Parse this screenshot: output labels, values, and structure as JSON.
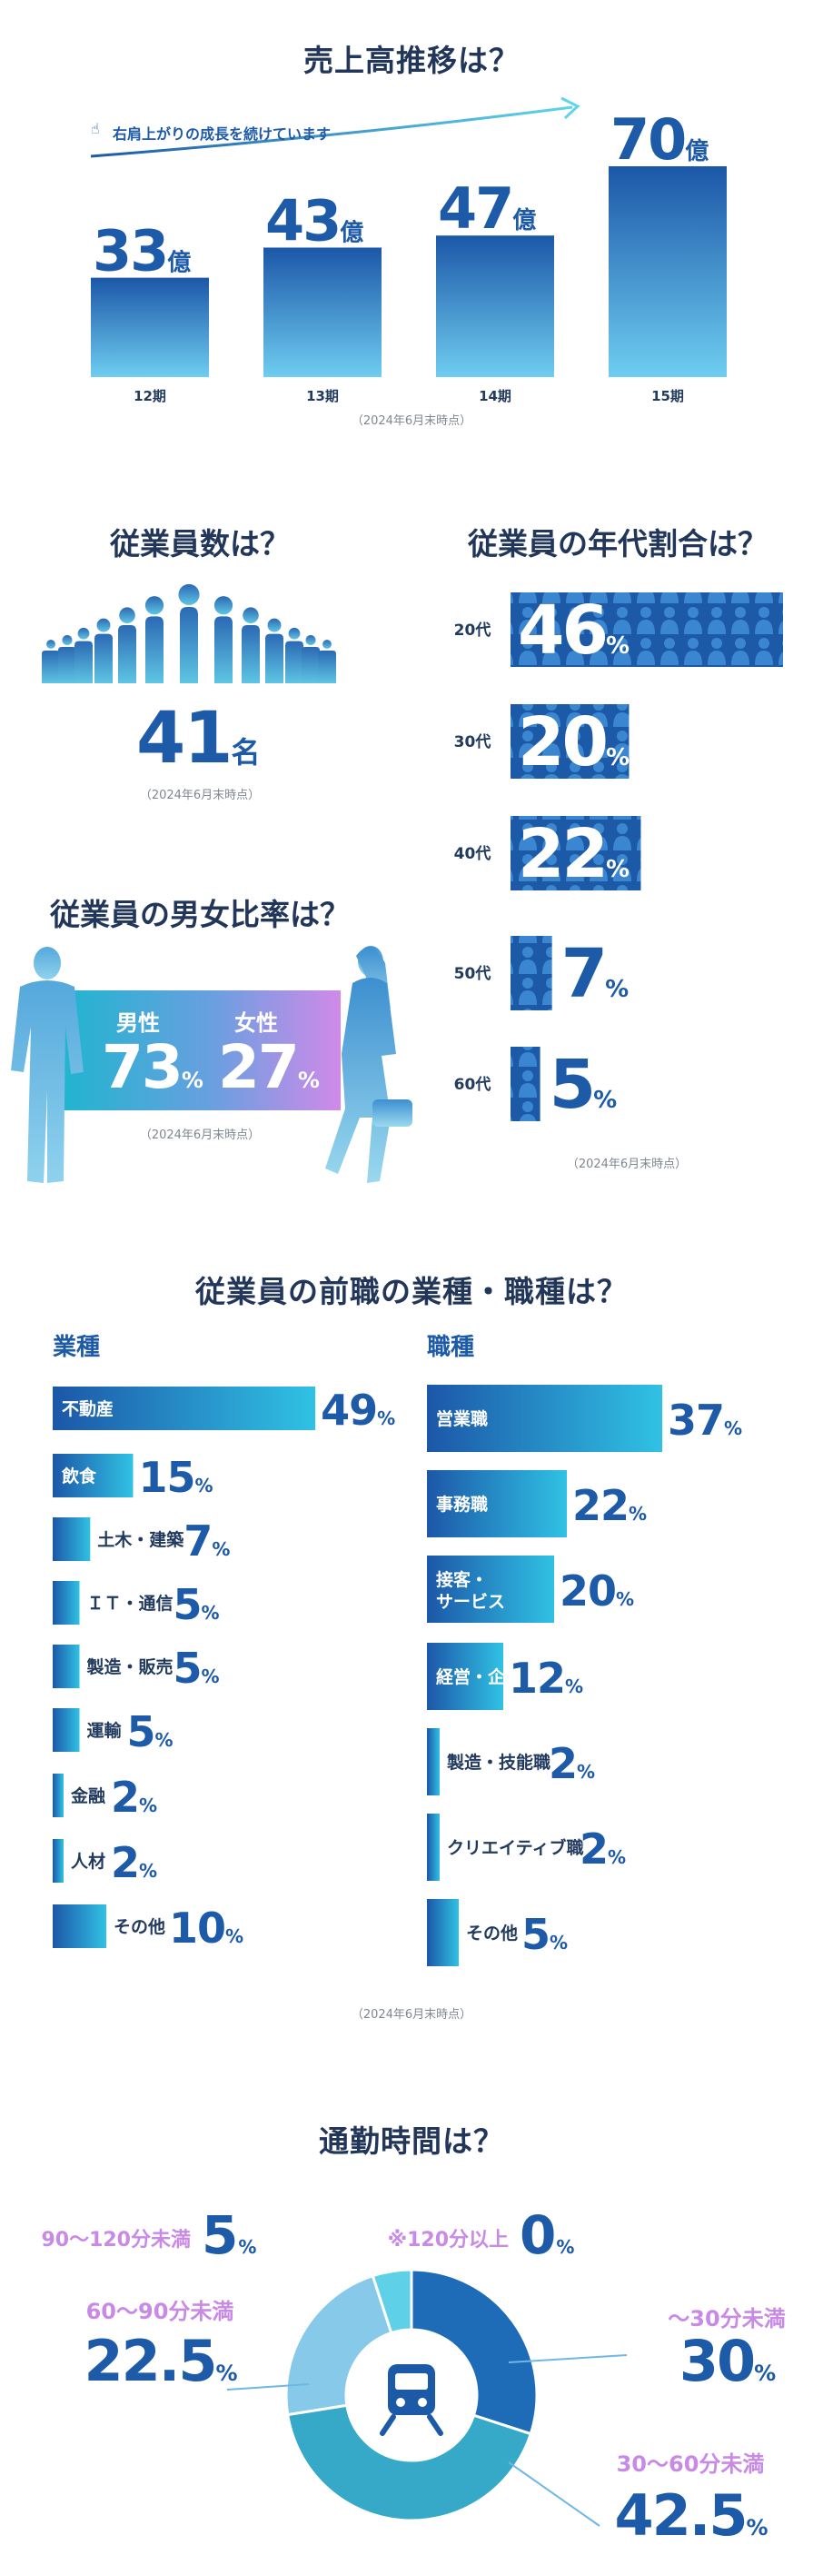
{
  "sales": {
    "title": "売上高推移は？",
    "tagline": "右肩上がりの成長を続けています",
    "note": "（2024年6月末時点）",
    "unit": "億"
  },
  "headcount": {
    "title": "従業員数は？",
    "value": "41",
    "unit": "名",
    "note": "（2024年6月末時点）"
  },
  "gender": {
    "title": "従業員の男女比率は？",
    "male_label": "男性",
    "male_value": "73",
    "female_label": "女性",
    "female_value": "27",
    "pct": "%",
    "note": "（2024年6月末時点）"
  },
  "age": {
    "title": "従業員の年代割合は？",
    "note": "（2024年6月末時点）"
  },
  "prev_job": {
    "title": "従業員の前職の業種・職種は？",
    "industry_heading": "業種",
    "occupation_heading": "職種",
    "note": "（2024年6月末時点）"
  },
  "commute": {
    "title": "通勤時間は？",
    "center_icon": "train-icon"
  },
  "colors": {
    "dark_blue": "#1d5aa8",
    "navy": "#223659",
    "cyan": "#25b6d8",
    "purple": "#c98ae6",
    "gray": "#7f8693"
  },
  "chart_data": [
    {
      "type": "bar",
      "id": "sales",
      "categories": [
        "12期",
        "13期",
        "14期",
        "15期"
      ],
      "values": [
        33,
        43,
        47,
        70
      ],
      "labels": [
        "33",
        "43",
        "47",
        "70"
      ],
      "unit": "億",
      "ylim": [
        0,
        70
      ]
    },
    {
      "type": "bar",
      "id": "gender",
      "categories": [
        "男性",
        "女性"
      ],
      "values": [
        73,
        27
      ],
      "unit": "%"
    },
    {
      "type": "bar",
      "id": "age",
      "categories": [
        "20代",
        "30代",
        "40代",
        "50代",
        "60代"
      ],
      "values": [
        46,
        20,
        22,
        7,
        5
      ],
      "labels": [
        "46",
        "20",
        "22",
        "7",
        "5"
      ],
      "unit": "%",
      "xlim": [
        0,
        46
      ]
    },
    {
      "type": "bar",
      "id": "industry",
      "categories": [
        "不動産",
        "飲食",
        "土木・建築",
        "ＩＴ・通信",
        "製造・販売",
        "運輸",
        "金融",
        "人材",
        "その他"
      ],
      "values": [
        49,
        15,
        7,
        5,
        5,
        5,
        2,
        2,
        10
      ],
      "labels": [
        "49",
        "15",
        "7",
        "5",
        "5",
        "5",
        "2",
        "2",
        "10"
      ],
      "unit": "%"
    },
    {
      "type": "bar",
      "id": "occupation",
      "categories": [
        "営業職",
        "事務職",
        "接客・サービス",
        "経営・企画",
        "製造・技能職",
        "クリエイティブ職",
        "その他"
      ],
      "values": [
        37,
        22,
        20,
        12,
        2,
        2,
        5
      ],
      "labels": [
        "37",
        "22",
        "20",
        "12",
        "2",
        "2",
        "5"
      ],
      "unit": "%"
    },
    {
      "type": "pie",
      "id": "commute",
      "categories": [
        "〜30分未満",
        "30〜60分未満",
        "60〜90分未満",
        "90〜120分未満",
        "※120分以上"
      ],
      "values": [
        30,
        42.5,
        22.5,
        5,
        0
      ],
      "labels": [
        "30",
        "42.5",
        "22.5",
        "5",
        "0"
      ],
      "unit": "%",
      "colors": [
        "#1e6bb8",
        "#36a9c9",
        "#86c9e8",
        "#5ed0e8",
        "#a8e4f0"
      ]
    }
  ]
}
